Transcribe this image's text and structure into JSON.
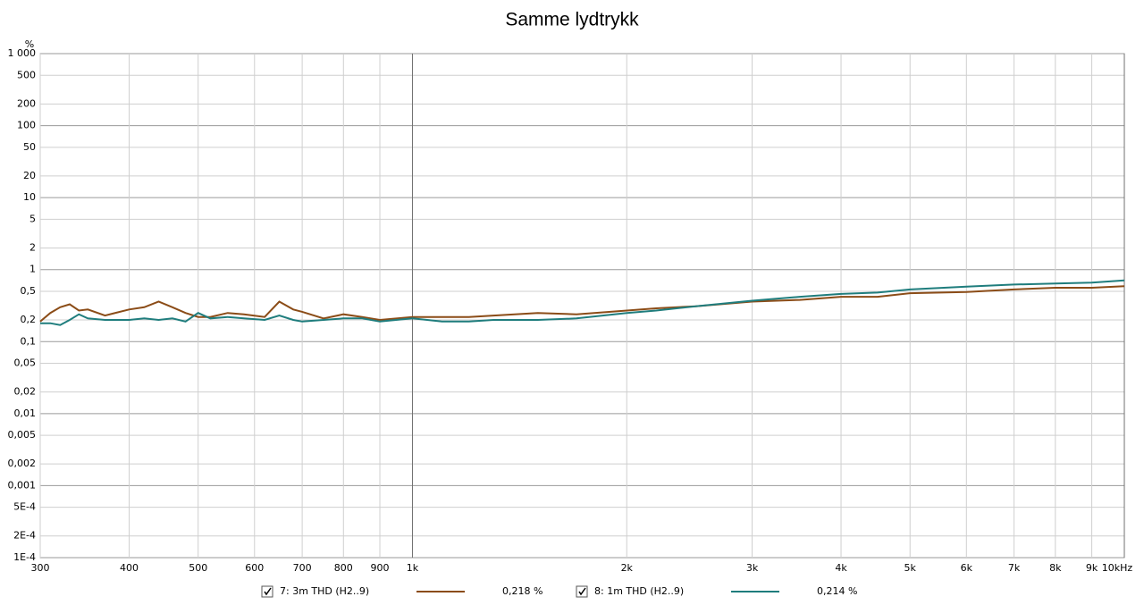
{
  "chart_data": {
    "type": "line",
    "title": "Samme lydtrykk",
    "y_unit": "%",
    "xscale": "log",
    "yscale": "log",
    "grid": true,
    "xlim": [
      300,
      10000
    ],
    "ylim": [
      0.0001,
      1000
    ],
    "xticks": [
      300,
      400,
      500,
      600,
      700,
      800,
      900,
      {
        "value": 1000,
        "label": "1k"
      },
      {
        "value": 2000,
        "label": "2k"
      },
      {
        "value": 3000,
        "label": "3k"
      },
      {
        "value": 4000,
        "label": "4k"
      },
      {
        "value": 5000,
        "label": "5k"
      },
      {
        "value": 6000,
        "label": "6k"
      },
      {
        "value": 7000,
        "label": "7k"
      },
      {
        "value": 8000,
        "label": "8k"
      },
      {
        "value": 9000,
        "label": "9k"
      },
      {
        "value": 10000,
        "label": "10kHz"
      }
    ],
    "yticks": [
      {
        "value": 1000,
        "label": "1 000"
      },
      500,
      200,
      100,
      50,
      20,
      10,
      5,
      2,
      1,
      {
        "value": 0.5,
        "label": "0,5"
      },
      {
        "value": 0.2,
        "label": "0,2"
      },
      {
        "value": 0.1,
        "label": "0,1"
      },
      {
        "value": 0.05,
        "label": "0,05"
      },
      {
        "value": 0.02,
        "label": "0,02"
      },
      {
        "value": 0.01,
        "label": "0,01"
      },
      {
        "value": 0.005,
        "label": "0,005"
      },
      {
        "value": 0.002,
        "label": "0,002"
      },
      {
        "value": 0.001,
        "label": "0,001"
      },
      {
        "value": 0.0005,
        "label": "5E-4"
      },
      {
        "value": 0.0002,
        "label": "2E-4"
      },
      {
        "value": 0.0001,
        "label": "1E-4"
      }
    ],
    "x": [
      300,
      310,
      320,
      330,
      340,
      350,
      370,
      400,
      420,
      440,
      460,
      480,
      500,
      520,
      550,
      580,
      620,
      650,
      680,
      700,
      750,
      800,
      850,
      900,
      1000,
      1100,
      1200,
      1300,
      1500,
      1700,
      2000,
      2200,
      2500,
      3000,
      3500,
      4000,
      4500,
      5000,
      6000,
      7000,
      8000,
      9000,
      10000
    ],
    "series": [
      {
        "name": "7: 3m THD (H2..9)",
        "readout": "0,218 %",
        "color": "#8b4c17",
        "values": [
          0.19,
          0.25,
          0.3,
          0.33,
          0.27,
          0.28,
          0.23,
          0.28,
          0.3,
          0.36,
          0.3,
          0.25,
          0.22,
          0.22,
          0.25,
          0.24,
          0.22,
          0.36,
          0.28,
          0.26,
          0.21,
          0.24,
          0.22,
          0.2,
          0.22,
          0.22,
          0.22,
          0.23,
          0.25,
          0.24,
          0.27,
          0.29,
          0.31,
          0.36,
          0.38,
          0.42,
          0.42,
          0.47,
          0.49,
          0.53,
          0.56,
          0.56,
          0.59
        ]
      },
      {
        "name": "8: 1m THD (H2..9)",
        "readout": "0,214 %",
        "color": "#1f7d7d",
        "values": [
          0.18,
          0.18,
          0.17,
          0.2,
          0.24,
          0.21,
          0.2,
          0.2,
          0.21,
          0.2,
          0.21,
          0.19,
          0.25,
          0.21,
          0.22,
          0.21,
          0.2,
          0.23,
          0.2,
          0.19,
          0.2,
          0.21,
          0.21,
          0.19,
          0.21,
          0.19,
          0.19,
          0.2,
          0.2,
          0.21,
          0.25,
          0.27,
          0.31,
          0.37,
          0.42,
          0.46,
          0.48,
          0.53,
          0.58,
          0.62,
          0.64,
          0.66,
          0.71
        ]
      }
    ]
  }
}
